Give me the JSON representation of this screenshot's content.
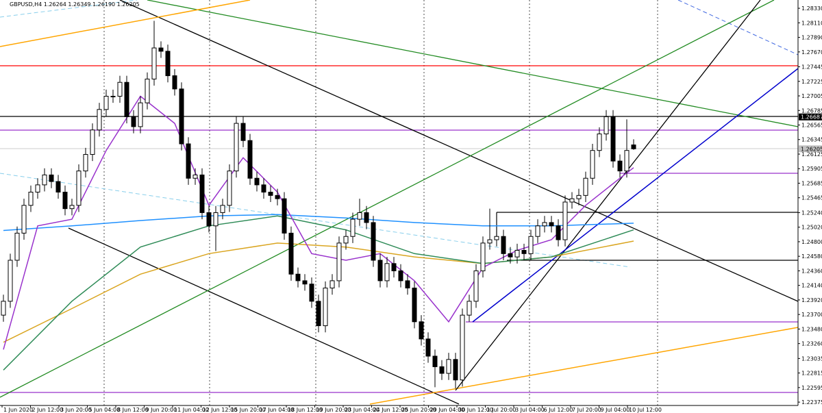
{
  "chart_data": {
    "type": "candlestick",
    "title": "GBPUSD,H4  1.26264 1.26349 1.26190 1.26205",
    "ylim": [
      1.22345,
      1.28455
    ],
    "xlim": [
      -0.5,
      116
    ],
    "yticks": [
      {
        "value": 1.2833,
        "label": "1.28330"
      },
      {
        "value": 1.2811,
        "label": "1.28110"
      },
      {
        "value": 1.2789,
        "label": "1.27890"
      },
      {
        "value": 1.2767,
        "label": "1.27670"
      },
      1.27445,
      1.27225,
      1.27005,
      1.26785,
      1.26565,
      1.26345,
      1.26125,
      1.25905,
      1.25685,
      1.25465,
      {
        "value": 1.2524,
        "label": "1.25240"
      },
      {
        "value": 1.2502,
        "label": "1.25020"
      },
      {
        "value": 1.248,
        "label": "1.24800"
      },
      {
        "value": 1.2458,
        "label": "1.24580"
      },
      {
        "value": 1.2436,
        "label": "1.24360"
      },
      {
        "value": 1.2414,
        "label": "1.24140"
      },
      {
        "value": 1.2392,
        "label": "1.23920"
      },
      {
        "value": 1.237,
        "label": "1.23700"
      },
      {
        "value": 1.2348,
        "label": "1.23480"
      },
      {
        "value": 1.2326,
        "label": "1.23260"
      },
      1.23035,
      1.22815,
      1.22595,
      1.22375
    ],
    "xticks": [
      {
        "value": -0.2,
        "label": "1 Jun 2020"
      },
      {
        "value": 3.95,
        "label": "2 Jun 12:00"
      },
      {
        "value": 8.1,
        "label": "3 Jun 20:00"
      },
      {
        "value": 12.25,
        "label": "5 Jun 04:00"
      },
      {
        "value": 16.4,
        "label": "8 Jun 12:00"
      },
      {
        "value": 20.55,
        "label": "9 Jun 20:00"
      },
      {
        "value": 24.7,
        "label": "11 Jun 04:00"
      },
      {
        "value": 28.85,
        "label": "12 Jun 12:00"
      },
      {
        "value": 33,
        "label": "15 Jun 20:00"
      },
      {
        "value": 37.15,
        "label": "17 Jun 04:00"
      },
      {
        "value": 41.3,
        "label": "18 Jun 12:00"
      },
      {
        "value": 45.45,
        "label": "19 Jun 20:00"
      },
      {
        "value": 49.6,
        "label": "23 Jun 04:00"
      },
      {
        "value": 53.75,
        "label": "24 Jun 12:00"
      },
      {
        "value": 57.9,
        "label": "25 Jun 20:00"
      },
      {
        "value": 62.05,
        "label": "29 Jun 04:00"
      },
      {
        "value": 66.2,
        "label": "30 Jun 12:00"
      },
      {
        "value": 70.35,
        "label": "1 Jul 20:00"
      },
      {
        "value": 74.5,
        "label": "3 Jul 04:00"
      },
      {
        "value": 78.65,
        "label": "6 Jul 12:00"
      },
      {
        "value": 82.8,
        "label": "7 Jul 20:00"
      },
      {
        "value": 86.95,
        "label": "9 Jul 04:00"
      },
      {
        "value": 91.1,
        "label": "10 Jul 12:00"
      }
    ],
    "price_marks": [
      1.26687,
      1.26205
    ],
    "open": [
      1.2369,
      1.239,
      1.2452,
      1.2493,
      1.2535,
      1.2555,
      1.2566,
      1.2581,
      1.2571,
      1.2555,
      1.253,
      1.2535,
      1.2587,
      1.2612,
      1.2649,
      1.268,
      1.27,
      1.27,
      1.2721,
      1.2669,
      1.2654,
      1.269,
      1.2726,
      1.2773,
      1.2768,
      1.2731,
      1.2711,
      1.2628,
      1.2576,
      1.2581,
      1.2524,
      1.2504,
      1.2524,
      1.2535,
      1.2587,
      1.2659,
      1.2633,
      1.2576,
      1.2566,
      1.2555,
      1.255,
      1.2545,
      1.2493,
      1.2431,
      1.2421,
      1.2416,
      1.239,
      1.2353,
      1.241,
      1.2421,
      1.2478,
      1.2488,
      1.2514,
      1.2524,
      1.2509,
      1.2452,
      1.2421,
      1.2447,
      1.2436,
      1.2421,
      1.241,
      1.2359,
      1.2333,
      1.2307,
      1.2291,
      1.2281,
      1.2302,
      1.2271,
      1.2369,
      1.239,
      1.2436,
      1.2478,
      1.2483,
      1.2488,
      1.2462,
      1.2457,
      1.2467,
      1.2462,
      1.2488,
      1.2504,
      1.2509,
      1.2504,
      1.2483,
      1.254,
      1.2545,
      1.255,
      1.2576,
      1.2618,
      1.2643,
      1.2669,
      1.2602,
      1.2587,
      1.26264
    ],
    "high": [
      1.24,
      1.2462,
      1.2503,
      1.2545,
      1.2565,
      1.2576,
      1.2591,
      1.2591,
      1.2581,
      1.2565,
      1.2545,
      1.2597,
      1.2622,
      1.2659,
      1.269,
      1.271,
      1.271,
      1.2731,
      1.2731,
      1.2679,
      1.27,
      1.2736,
      1.2814,
      1.2783,
      1.2778,
      1.2741,
      1.2721,
      1.2638,
      1.2591,
      1.2591,
      1.2534,
      1.2534,
      1.2545,
      1.2597,
      1.2669,
      1.2669,
      1.2643,
      1.2586,
      1.2576,
      1.2565,
      1.256,
      1.2555,
      1.2503,
      1.2441,
      1.2431,
      1.2426,
      1.24,
      1.242,
      1.2431,
      1.2488,
      1.2498,
      1.2524,
      1.2545,
      1.2534,
      1.2519,
      1.2462,
      1.2457,
      1.2457,
      1.2446,
      1.2431,
      1.242,
      1.2369,
      1.2343,
      1.2317,
      1.2301,
      1.2312,
      1.2312,
      1.2379,
      1.24,
      1.2446,
      1.2488,
      1.253,
      1.2498,
      1.2498,
      1.2472,
      1.2477,
      1.2477,
      1.2498,
      1.2514,
      1.2519,
      1.2519,
      1.2514,
      1.255,
      1.2555,
      1.256,
      1.2586,
      1.2628,
      1.2653,
      1.2679,
      1.2679,
      1.2612,
      1.2665,
      1.26349
    ],
    "low": [
      1.2359,
      1.238,
      1.2442,
      1.2483,
      1.2525,
      1.2545,
      1.2556,
      1.2561,
      1.2545,
      1.252,
      1.252,
      1.2525,
      1.2577,
      1.2602,
      1.2639,
      1.267,
      1.269,
      1.269,
      1.2659,
      1.2644,
      1.2644,
      1.268,
      1.2716,
      1.2758,
      1.2721,
      1.2701,
      1.2618,
      1.2566,
      1.2566,
      1.2514,
      1.2494,
      1.2466,
      1.2514,
      1.2525,
      1.2577,
      1.2623,
      1.2566,
      1.2556,
      1.2545,
      1.254,
      1.2535,
      1.2483,
      1.2421,
      1.2411,
      1.2406,
      1.238,
      1.2343,
      1.2343,
      1.24,
      1.2411,
      1.2468,
      1.2478,
      1.2504,
      1.2499,
      1.2442,
      1.2411,
      1.2411,
      1.2426,
      1.2411,
      1.24,
      1.2349,
      1.2323,
      1.2297,
      1.226,
      1.2271,
      1.2271,
      1.2258,
      1.2261,
      1.2359,
      1.238,
      1.2426,
      1.2468,
      1.2473,
      1.2452,
      1.2447,
      1.2447,
      1.2452,
      1.2452,
      1.2478,
      1.2494,
      1.2494,
      1.2473,
      1.2473,
      1.253,
      1.2535,
      1.254,
      1.2566,
      1.2608,
      1.2633,
      1.2592,
      1.2577,
      1.2577,
      1.2619
    ],
    "close": [
      1.239,
      1.2452,
      1.2493,
      1.2535,
      1.2555,
      1.2566,
      1.2581,
      1.2571,
      1.2555,
      1.253,
      1.2535,
      1.2587,
      1.2612,
      1.2649,
      1.268,
      1.27,
      1.27,
      1.2721,
      1.2669,
      1.2654,
      1.269,
      1.2726,
      1.2773,
      1.2768,
      1.2731,
      1.2711,
      1.2628,
      1.2576,
      1.2581,
      1.2524,
      1.2504,
      1.2524,
      1.2535,
      1.2587,
      1.2659,
      1.2633,
      1.2576,
      1.2566,
      1.2555,
      1.255,
      1.2545,
      1.2493,
      1.2431,
      1.2421,
      1.2416,
      1.239,
      1.2353,
      1.241,
      1.2421,
      1.2478,
      1.2488,
      1.2514,
      1.2524,
      1.2509,
      1.2452,
      1.2421,
      1.2447,
      1.2436,
      1.2421,
      1.241,
      1.2359,
      1.2333,
      1.2307,
      1.2291,
      1.2281,
      1.2302,
      1.2271,
      1.2369,
      1.239,
      1.2436,
      1.2478,
      1.2483,
      1.2488,
      1.2462,
      1.2457,
      1.2467,
      1.2462,
      1.2488,
      1.2504,
      1.2509,
      1.2504,
      1.2483,
      1.254,
      1.2545,
      1.255,
      1.2576,
      1.2618,
      1.2643,
      1.2669,
      1.2602,
      1.2587,
      1.2618,
      1.26205
    ],
    "lines": [
      {
        "color": "#1e90ff",
        "x": [
          0,
          10,
          20,
          30,
          40,
          50,
          60,
          70,
          80,
          92
        ],
        "values": [
          1.2497,
          1.2504,
          1.2512,
          1.2519,
          1.2521,
          1.2516,
          1.2509,
          1.2504,
          1.2504,
          1.2508
        ]
      },
      {
        "color": "#daa520",
        "x": [
          0,
          10,
          20,
          30,
          40,
          50,
          60,
          70,
          80,
          92
        ],
        "values": [
          1.2328,
          1.2379,
          1.2431,
          1.2462,
          1.2478,
          1.2472,
          1.2457,
          1.2447,
          1.2457,
          1.2481
        ]
      },
      {
        "color": "#2e8b57",
        "x": [
          0,
          10,
          20,
          30,
          40,
          50,
          60,
          70,
          80,
          92
        ],
        "values": [
          1.2286,
          1.239,
          1.2472,
          1.2504,
          1.2519,
          1.2498,
          1.2462,
          1.2447,
          1.2457,
          1.2498
        ]
      },
      {
        "color": "#9932cc",
        "x": [
          0,
          5,
          10,
          15,
          20,
          25,
          30,
          35,
          40,
          45,
          50,
          55,
          60,
          65,
          70,
          75,
          80,
          85,
          90,
          92
        ],
        "values": [
          1.2317,
          1.2504,
          1.2514,
          1.2618,
          1.27,
          1.2659,
          1.2535,
          1.2607,
          1.2555,
          1.2462,
          1.2452,
          1.2462,
          1.2421,
          1.2359,
          1.2441,
          1.2467,
          1.2483,
          1.2535,
          1.2576,
          1.2592
        ]
      }
    ]
  }
}
